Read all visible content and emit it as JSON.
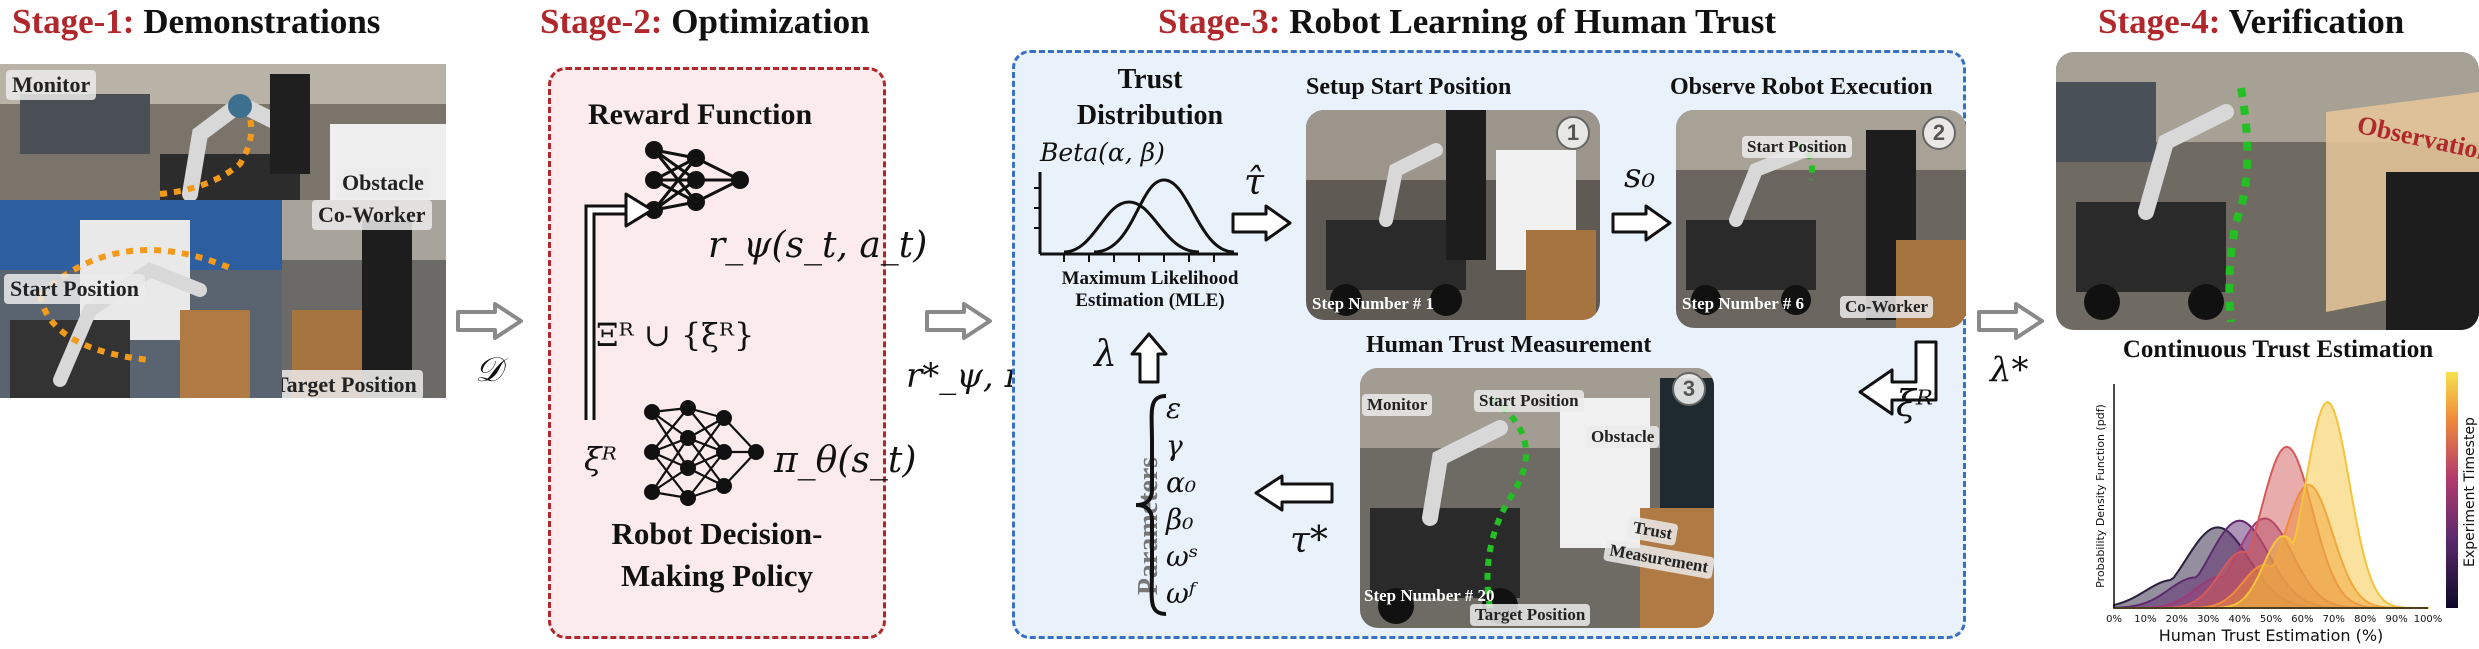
{
  "stage1": {
    "num": "Stage-1:",
    "title": "Demonstrations",
    "labels": {
      "monitor": "Monitor",
      "obstacle": "Obstacle",
      "co_worker": "Co-Worker",
      "start_position": "Start Position",
      "target_position": "Target Position"
    },
    "output_symbol": "𝒟"
  },
  "stage2": {
    "num": "Stage-2:",
    "title": "Optimization",
    "reward_function": "Reward Function",
    "reward_expr": "r_ψ(s_t, a_t)",
    "set_expr": "Ξᴿ ∪ {ξᴿ}",
    "xi_r": "ξᴿ",
    "policy_expr": "π_θ(s_t)",
    "policy_line1": "Robot Decision-",
    "policy_line2": "Making Policy",
    "output_symbol": "r*_ψ, π*_θ"
  },
  "stage3": {
    "num": "Stage-3:",
    "title": "Robot Learning of Human Trust",
    "trust_dist_line1": "Trust",
    "trust_dist_line2": "Distribution",
    "beta_expr": "Beta(α, β)",
    "mle_line1": "Maximum Likelihood",
    "mle_line2": "Estimation (MLE)",
    "tau_hat": "τ̂",
    "lambda": "λ",
    "s0": "s₀",
    "xi_r": "ξᴿ",
    "tau_star": "τ*",
    "parameters_label": "Parameters",
    "parameters": [
      "ε",
      "γ",
      "α₀",
      "β₀",
      "ωˢ",
      "ωᶠ"
    ],
    "panel1": {
      "title": "Setup Start Position",
      "step_label": "Step Number # 1",
      "badge": "1"
    },
    "panel2": {
      "title": "Observe Robot Execution",
      "step_label": "Step Number # 6",
      "badge": "2",
      "start_position": "Start Position",
      "co_worker": "Co-Worker"
    },
    "panel3": {
      "title": "Human Trust Measurement",
      "step_label": "Step Number # 20",
      "badge": "3",
      "monitor": "Monitor",
      "obstacle": "Obstacle",
      "start_position": "Start Position",
      "target_position": "Target Position",
      "trust_line1": "Trust",
      "trust_line2": "Measurement"
    }
  },
  "stage4": {
    "num": "Stage-4:",
    "title": "Verification",
    "observation": "Observation",
    "input_symbol": "λ*",
    "colors": {
      "trajectory": "#22c022",
      "observation_plane": "#e8c79a"
    }
  },
  "chart_data": {
    "type": "area",
    "title": "Continuous Trust Estimation",
    "xlabel": "Human Trust Estimation (%)",
    "ylabel": "Probability Density Function (pdf)",
    "colorbar_label": "Experiment Timestep",
    "x_ticks": [
      "0%",
      "10%",
      "20%",
      "30%",
      "40%",
      "50%",
      "60%",
      "70%",
      "80%",
      "90%",
      "100%"
    ],
    "xlim": [
      0,
      100
    ],
    "colors": [
      "#2a1f3d",
      "#5e2a6e",
      "#9b3a77",
      "#d45a5a",
      "#f08a3a",
      "#f5c43d"
    ],
    "series": [
      {
        "peak": 33,
        "height": 0.36
      },
      {
        "peak": 40,
        "height": 0.39
      },
      {
        "peak": 48,
        "height": 0.4
      },
      {
        "peak": 55,
        "height": 0.72
      },
      {
        "peak": 62,
        "height": 0.55
      },
      {
        "peak": 68,
        "height": 0.92
      }
    ]
  },
  "colors": {
    "stage_red": "#b0282c",
    "stage2_border": "#b0282c",
    "stage2_bg": "#fcebec",
    "stage3_border": "#3a70c2",
    "stage3_bg": "#e9f1fb",
    "arrow_gray": "#8a8a8a",
    "trajectory_orange": "#f39a1a",
    "trajectory_green": "#22c022"
  }
}
